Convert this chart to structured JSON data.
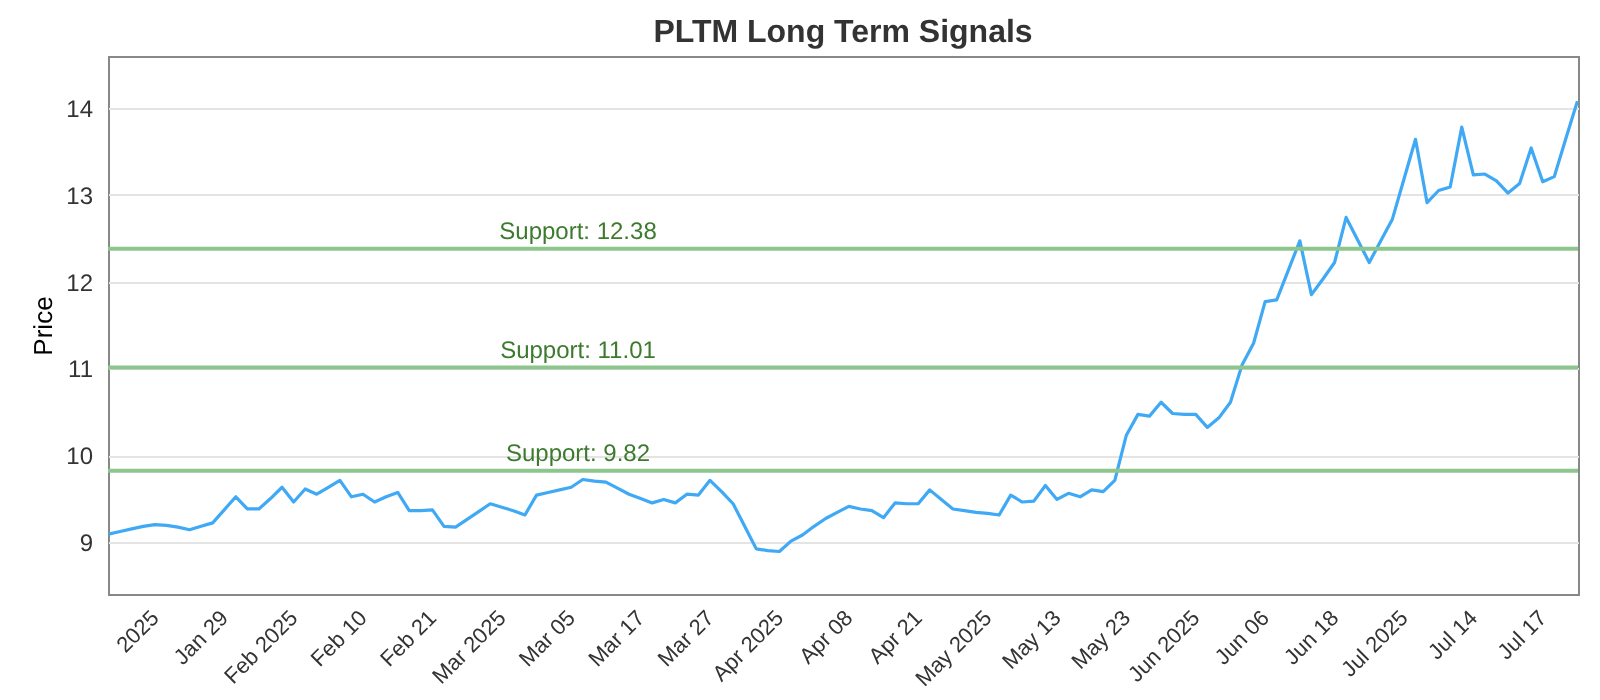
{
  "chart_data": {
    "type": "line",
    "title": "PLTM Long Term Signals",
    "ylabel": "Price",
    "categories": [
      null,
      null,
      null,
      null,
      "2025",
      null,
      null,
      null,
      null,
      null,
      "Jan 29",
      null,
      null,
      null,
      null,
      null,
      "Feb 2025",
      null,
      null,
      null,
      null,
      null,
      "Feb 10",
      null,
      null,
      null,
      null,
      null,
      "Feb 21",
      null,
      null,
      null,
      null,
      null,
      "Mar 2025",
      null,
      null,
      null,
      null,
      null,
      "Mar 05",
      null,
      null,
      null,
      null,
      null,
      "Mar 17",
      null,
      null,
      null,
      null,
      null,
      "Mar 27",
      null,
      null,
      null,
      null,
      null,
      "Apr 2025",
      null,
      null,
      null,
      null,
      null,
      "Apr 08",
      null,
      null,
      null,
      null,
      null,
      "Apr 21",
      null,
      null,
      null,
      null,
      null,
      "May 2025",
      null,
      null,
      null,
      null,
      null,
      "May 13",
      null,
      null,
      null,
      null,
      null,
      "May 23",
      null,
      null,
      null,
      null,
      null,
      "Jun 2025",
      null,
      null,
      null,
      null,
      null,
      "Jun 06",
      null,
      null,
      null,
      null,
      null,
      "Jun 18",
      null,
      null,
      null,
      null,
      null,
      "Jul 2025",
      null,
      null,
      null,
      null,
      null,
      "Jul 14",
      null,
      null,
      null,
      null,
      null,
      "Jul 17",
      null,
      null,
      null
    ],
    "ylim": [
      8.4,
      14.6
    ],
    "yticks": [
      9,
      10,
      11,
      12,
      13,
      14
    ],
    "grid": "y",
    "marker": "none",
    "line_style": "solid",
    "series": [
      {
        "color": "#3fa9f5",
        "values": [
          9.09,
          9.12,
          9.15,
          9.18,
          9.2,
          9.19,
          9.17,
          9.14,
          9.18,
          9.22,
          9.37,
          9.52,
          9.38,
          9.38,
          9.5,
          9.63,
          9.46,
          9.61,
          9.55,
          9.63,
          9.71,
          9.52,
          9.55,
          9.46,
          9.52,
          9.57,
          9.36,
          9.36,
          9.37,
          9.18,
          9.17,
          9.26,
          9.35,
          9.44,
          9.4,
          9.36,
          9.31,
          9.54,
          9.57,
          9.6,
          9.63,
          9.72,
          9.7,
          9.69,
          9.62,
          9.55,
          9.5,
          9.45,
          9.49,
          9.45,
          9.55,
          9.54,
          9.71,
          9.58,
          9.44,
          9.18,
          8.92,
          8.9,
          8.89,
          9.01,
          9.08,
          9.18,
          9.27,
          9.34,
          9.41,
          9.38,
          9.36,
          9.28,
          9.45,
          9.44,
          9.44,
          9.6,
          9.49,
          9.38,
          9.36,
          9.34,
          9.33,
          9.31,
          9.54,
          9.46,
          9.47,
          9.65,
          9.49,
          9.56,
          9.52,
          9.6,
          9.58,
          9.71,
          10.23,
          10.47,
          10.45,
          10.61,
          10.48,
          10.47,
          10.47,
          10.32,
          10.43,
          10.61,
          11.04,
          11.29,
          11.77,
          11.79,
          12.13,
          12.47,
          11.85,
          12.03,
          12.22,
          12.74,
          12.48,
          12.22,
          12.47,
          12.72,
          13.18,
          13.64,
          12.91,
          13.05,
          13.09,
          13.78,
          13.23,
          13.24,
          13.16,
          13.02,
          13.13,
          13.54,
          13.15,
          13.21,
          13.65,
          14.08
        ]
      }
    ],
    "ref_lines": [
      {
        "axis": "y",
        "value": 12.38,
        "label": "Support: 12.38",
        "color": "#8cc68c"
      },
      {
        "axis": "y",
        "value": 11.01,
        "label": "Support: 11.01",
        "color": "#8cc68c"
      },
      {
        "axis": "y",
        "value": 9.82,
        "label": "Support: 9.82",
        "color": "#8cc68c"
      }
    ]
  }
}
